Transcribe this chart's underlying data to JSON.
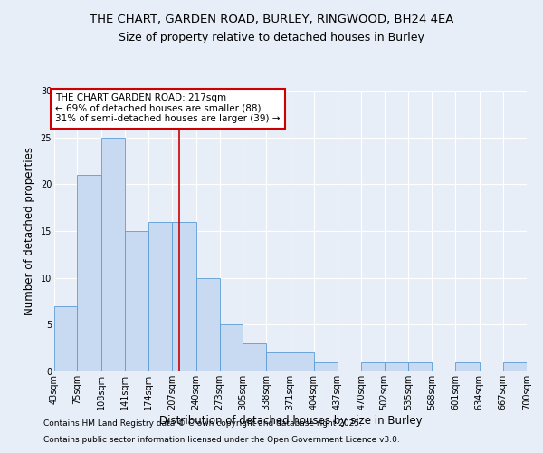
{
  "title": "THE CHART, GARDEN ROAD, BURLEY, RINGWOOD, BH24 4EA",
  "subtitle": "Size of property relative to detached houses in Burley",
  "xlabel": "Distribution of detached houses by size in Burley",
  "ylabel": "Number of detached properties",
  "bin_edges": [
    43,
    75,
    108,
    141,
    174,
    207,
    240,
    273,
    305,
    338,
    371,
    404,
    437,
    470,
    502,
    535,
    568,
    601,
    634,
    667,
    700
  ],
  "bar_heights": [
    7,
    21,
    25,
    15,
    16,
    16,
    10,
    5,
    3,
    2,
    2,
    1,
    0,
    1,
    1,
    1,
    0,
    1,
    0,
    1
  ],
  "bar_color": "#c8daf2",
  "bar_edge_color": "#5b9bd5",
  "vline_x": 217,
  "vline_color": "#cc0000",
  "ylim": [
    0,
    30
  ],
  "yticks": [
    0,
    5,
    10,
    15,
    20,
    25,
    30
  ],
  "annotation_title": "THE CHART GARDEN ROAD: 217sqm",
  "annotation_line1": "← 69% of detached houses are smaller (88)",
  "annotation_line2": "31% of semi-detached houses are larger (39) →",
  "annotation_box_color": "#cc0000",
  "annotation_bg": "#ffffff",
  "footnote1": "Contains HM Land Registry data © Crown copyright and database right 2025.",
  "footnote2": "Contains public sector information licensed under the Open Government Licence v3.0.",
  "background_color": "#e8eef8",
  "title_fontsize": 9.5,
  "subtitle_fontsize": 9,
  "axis_fontsize": 8.5,
  "tick_fontsize": 7,
  "annot_fontsize": 7.5,
  "footnote_fontsize": 6.5
}
